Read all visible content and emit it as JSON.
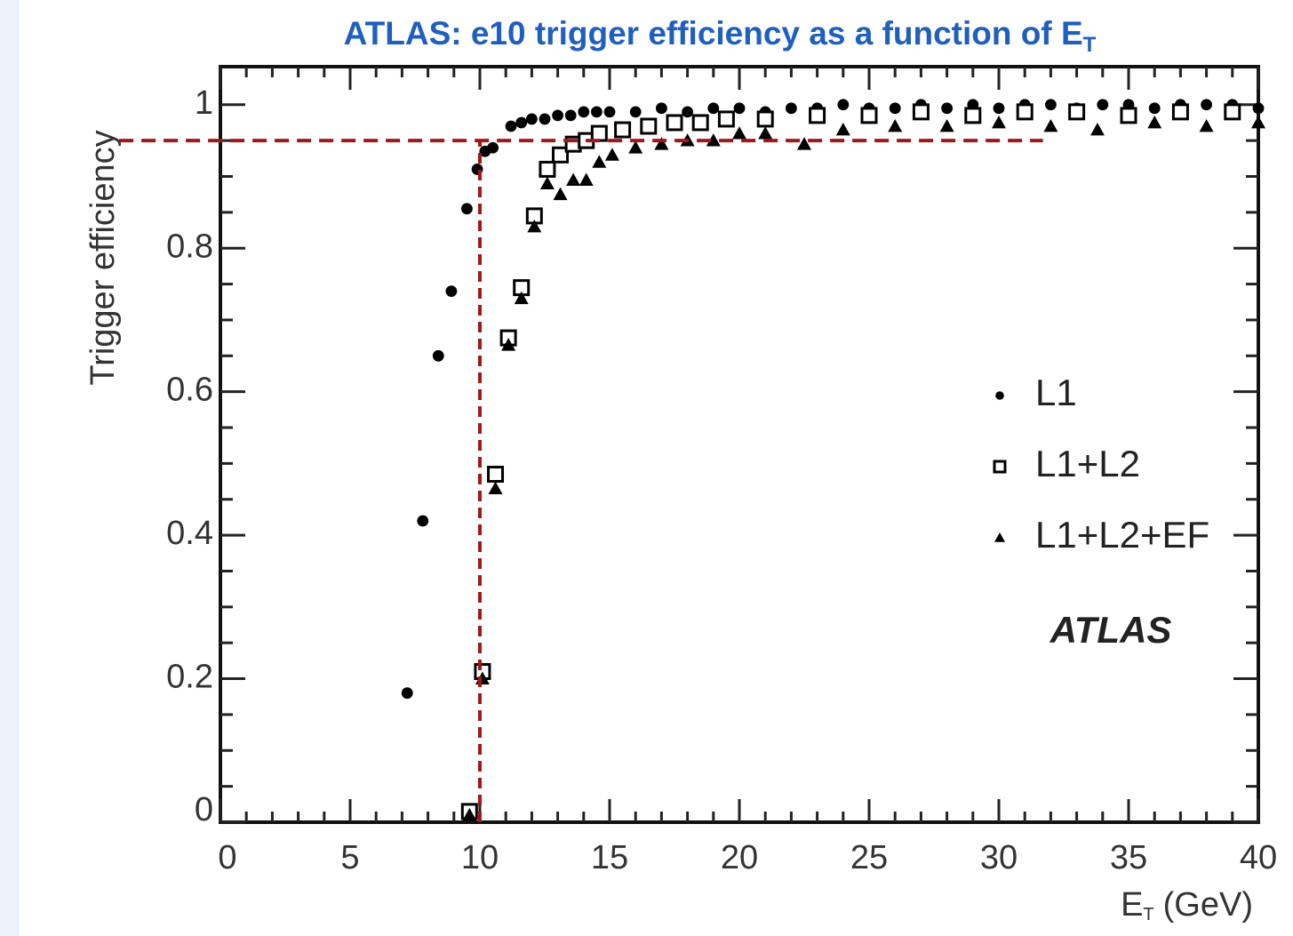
{
  "chart_data": {
    "type": "scatter",
    "title": "ATLAS: e10 trigger efficiency as a function of E",
    "title_subscript": "T",
    "ylabel": "Trigger efficiency",
    "xlabel": {
      "main": "E",
      "sub": "T",
      "unit": "(GeV)"
    },
    "annotation": "ATLAS",
    "xlim": [
      0,
      40
    ],
    "ylim": [
      0,
      1.053
    ],
    "xticks": [
      0,
      5,
      10,
      15,
      20,
      25,
      30,
      35,
      40
    ],
    "yticks": [
      0,
      0.2,
      0.4,
      0.6,
      0.8,
      1
    ],
    "legend": "right",
    "series": [
      {
        "name": "L1",
        "color": "#000000",
        "marker": "circle",
        "x": [
          7.2,
          7.8,
          8.4,
          8.9,
          9.5,
          9.9,
          10.2,
          10.5,
          11.2,
          11.6,
          12,
          12.5,
          13,
          13.5,
          14,
          14.5,
          15,
          16,
          17,
          18,
          19,
          20,
          21,
          22,
          23,
          24,
          25,
          26,
          27,
          28,
          29,
          30,
          31,
          32,
          33,
          34,
          35,
          36,
          37,
          38,
          39,
          40
        ],
        "values": [
          0.18,
          0.42,
          0.65,
          0.74,
          0.855,
          0.91,
          0.935,
          0.94,
          0.97,
          0.975,
          0.98,
          0.98,
          0.985,
          0.985,
          0.99,
          0.99,
          0.99,
          0.99,
          0.995,
          0.99,
          0.995,
          0.995,
          0.99,
          0.995,
          0.995,
          1,
          0.995,
          0.995,
          1,
          0.995,
          1,
          0.995,
          1,
          1,
          0.995,
          1,
          1,
          0.995,
          1,
          1,
          1,
          0.995
        ]
      },
      {
        "name": "L1+L2",
        "color": "#000000",
        "marker": "square",
        "x": [
          9.6,
          10.1,
          10.6,
          11.1,
          11.6,
          12.1,
          12.6,
          13.1,
          13.6,
          14.1,
          14.6,
          15.5,
          16.5,
          17.5,
          18.5,
          19.5,
          21,
          23,
          25,
          27,
          29,
          31,
          33,
          35,
          37,
          39
        ],
        "values": [
          0.015,
          0.21,
          0.485,
          0.675,
          0.745,
          0.845,
          0.91,
          0.93,
          0.945,
          0.95,
          0.96,
          0.965,
          0.97,
          0.975,
          0.975,
          0.98,
          0.98,
          0.985,
          0.985,
          0.99,
          0.985,
          0.99,
          0.99,
          0.985,
          0.99,
          0.99
        ]
      },
      {
        "name": "L1+L2+EF",
        "color": "#000000",
        "marker": "triangle",
        "x": [
          9.6,
          10.1,
          10.6,
          11.1,
          11.6,
          12.1,
          12.6,
          13.1,
          13.6,
          14.1,
          14.6,
          15.1,
          16,
          17,
          18,
          19,
          20,
          21,
          22.5,
          24,
          26,
          28,
          30,
          32,
          33.8,
          36,
          38,
          40
        ],
        "values": [
          0.01,
          0.2,
          0.465,
          0.665,
          0.73,
          0.83,
          0.89,
          0.875,
          0.895,
          0.895,
          0.92,
          0.93,
          0.94,
          0.945,
          0.95,
          0.95,
          0.96,
          0.96,
          0.945,
          0.965,
          0.97,
          0.97,
          0.975,
          0.97,
          0.965,
          0.975,
          0.97,
          0.975
        ]
      }
    ],
    "hline": {
      "y": 0.95,
      "xlim": [
        -3.9,
        31.7
      ],
      "color": "#a01818"
    },
    "vline": {
      "x": 10,
      "ylim": [
        0,
        0.95
      ],
      "color": "#a01818"
    }
  }
}
